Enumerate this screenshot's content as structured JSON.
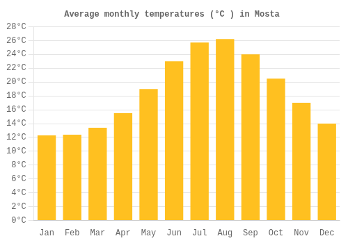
{
  "chart_data": {
    "type": "bar",
    "title": "Average monthly temperatures (°C ) in Mosta",
    "categories": [
      "Jan",
      "Feb",
      "Mar",
      "Apr",
      "May",
      "Jun",
      "Jul",
      "Aug",
      "Sep",
      "Oct",
      "Nov",
      "Dec"
    ],
    "values": [
      12.3,
      12.4,
      13.4,
      15.5,
      19.0,
      23.0,
      25.7,
      26.2,
      24.0,
      20.5,
      17.0,
      14.0
    ],
    "color": "#FFC020",
    "ylim": [
      0,
      28
    ],
    "yticks": [
      {
        "value": 0,
        "label": "0°C"
      },
      {
        "value": 2,
        "label": "2°C"
      },
      {
        "value": 4,
        "label": "4°C"
      },
      {
        "value": 6,
        "label": "6°C"
      },
      {
        "value": 8,
        "label": "8°C"
      },
      {
        "value": 10,
        "label": "10°C"
      },
      {
        "value": 12,
        "label": "12°C"
      },
      {
        "value": 14,
        "label": "14°C"
      },
      {
        "value": 16,
        "label": "16°C"
      },
      {
        "value": 18,
        "label": "18°C"
      },
      {
        "value": 20,
        "label": "20°C"
      },
      {
        "value": 22,
        "label": "22°C"
      },
      {
        "value": 24,
        "label": "24°C"
      },
      {
        "value": 26,
        "label": "26°C"
      },
      {
        "value": 28,
        "label": "28°C"
      }
    ],
    "grid": true
  }
}
